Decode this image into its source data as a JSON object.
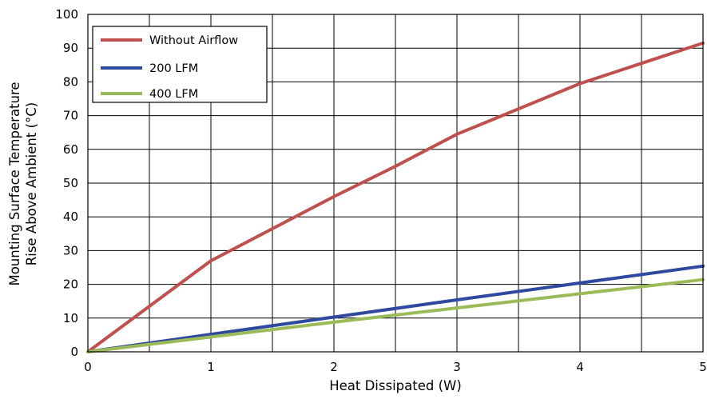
{
  "chart_data": {
    "type": "line",
    "title": "",
    "xlabel": "Heat Dissipated (W)",
    "ylabel_lines": [
      "Mounting Surface Temperature",
      "Rise Above  Ambient (°C)"
    ],
    "xlim": [
      0,
      5
    ],
    "ylim": [
      0,
      100
    ],
    "x_ticks": [
      0,
      1,
      2,
      3,
      4,
      5
    ],
    "y_ticks": [
      0,
      10,
      20,
      30,
      40,
      50,
      60,
      70,
      80,
      90,
      100
    ],
    "x_grid": [
      0,
      0.5,
      1,
      1.5,
      2,
      2.5,
      3,
      3.5,
      4,
      4.5,
      5
    ],
    "y_grid": [
      0,
      10,
      20,
      30,
      40,
      50,
      60,
      70,
      80,
      90,
      100
    ],
    "grid": true,
    "legend_position": "top-left",
    "series": [
      {
        "name": "Without Airflow",
        "color": "#c0504d",
        "x": [
          0,
          0.5,
          1,
          1.5,
          2,
          2.5,
          3,
          3.5,
          4,
          4.5,
          5
        ],
        "y": [
          0,
          13.5,
          27,
          36.5,
          46,
          55,
          64.5,
          72,
          79.5,
          85.5,
          91.5
        ]
      },
      {
        "name": "200 LFM",
        "color": "#2e4a9e",
        "x": [
          0,
          1,
          2,
          3,
          4,
          5
        ],
        "y": [
          0,
          5.2,
          10.3,
          15.4,
          20.4,
          25.4
        ]
      },
      {
        "name": "400 LFM",
        "color": "#9bbb59",
        "x": [
          0,
          1,
          2,
          3,
          4,
          5
        ],
        "y": [
          0,
          4.4,
          8.8,
          13,
          17.2,
          21.4
        ]
      }
    ]
  }
}
